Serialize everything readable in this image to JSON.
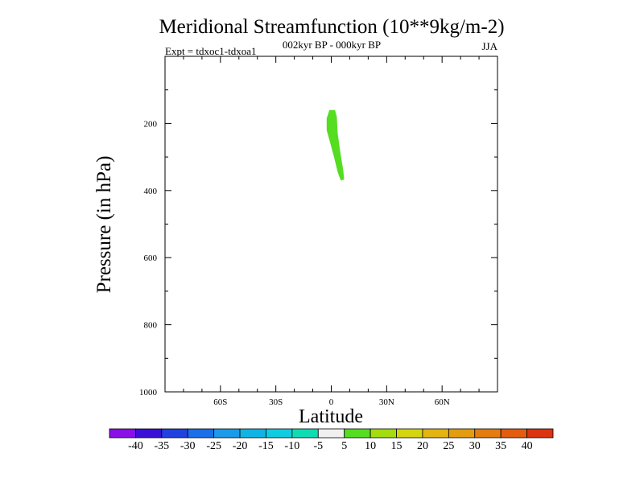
{
  "chart_data": {
    "type": "contour",
    "title": "Meridional Streamfunction (10**9kg/m-2)",
    "subtitle": "002kyr BP - 000kyr BP",
    "left_label": "Expt = tdxoc1-tdxoa1",
    "right_label": "JJA",
    "xlabel": "Latitude",
    "ylabel": "Pressure (in hPa)",
    "xlim": [
      -90,
      90
    ],
    "ylim": [
      1000,
      0
    ],
    "x_major_ticks": [
      -60,
      -30,
      0,
      30,
      60
    ],
    "x_minor_ticks": [
      -90,
      -80,
      -70,
      -50,
      -40,
      -20,
      -10,
      10,
      20,
      40,
      50,
      70,
      80,
      90
    ],
    "x_tick_labels": [
      "60S",
      "30S",
      "0",
      "30N",
      "60N"
    ],
    "y_major_ticks": [
      200,
      400,
      600,
      800,
      1000
    ],
    "y_minor_ticks": [
      100,
      300,
      500,
      700,
      900
    ],
    "y_tick_labels": [
      "200",
      "400",
      "600",
      "800",
      "1000"
    ],
    "filled_regions": [
      {
        "level_range": [
          5,
          10
        ],
        "color": "#55dd22",
        "outline": [
          [
            -2.5,
            185
          ],
          [
            -1.0,
            160
          ],
          [
            2.0,
            160
          ],
          [
            3.0,
            180
          ],
          [
            3.5,
            230
          ],
          [
            5.0,
            290
          ],
          [
            6.5,
            340
          ],
          [
            7.0,
            367
          ],
          [
            5.5,
            370
          ],
          [
            5.0,
            368
          ],
          [
            3.5,
            345
          ],
          [
            1.5,
            300
          ],
          [
            -0.5,
            260
          ],
          [
            -2.5,
            220
          ]
        ]
      }
    ],
    "colorbar": {
      "levels": [
        "-40",
        "-35",
        "-30",
        "-25",
        "-20",
        "-15",
        "-10",
        "-5",
        "5",
        "10",
        "15",
        "20",
        "25",
        "30",
        "35",
        "40"
      ],
      "colors": [
        "#8a10e8",
        "#3a10d8",
        "#2040e0",
        "#1a6ee8",
        "#1a9ae8",
        "#10b4e4",
        "#10cce0",
        "#10dcb4",
        "#f0f0f0",
        "#55dd22",
        "#a4dc10",
        "#d4d410",
        "#e4b410",
        "#e49c10",
        "#e47c10",
        "#e45c10",
        "#dc3410"
      ]
    }
  }
}
